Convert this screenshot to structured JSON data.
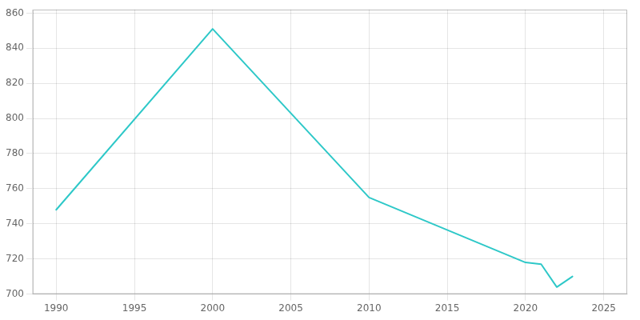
{
  "chart_data": {
    "type": "line",
    "x": [
      1990,
      2000,
      2010,
      2020,
      2021,
      2022,
      2023
    ],
    "values": [
      748,
      851,
      755,
      718,
      717,
      704,
      710
    ],
    "color": "#2EC8C8",
    "xlim": [
      1988.5,
      2026.5
    ],
    "xticks": [
      1990,
      1995,
      2000,
      2005,
      2010,
      2015,
      2020,
      2025
    ],
    "ylim": [
      700,
      862
    ],
    "yticks": [
      700,
      720,
      740,
      760,
      780,
      800,
      820,
      840,
      860
    ],
    "grid": true
  }
}
